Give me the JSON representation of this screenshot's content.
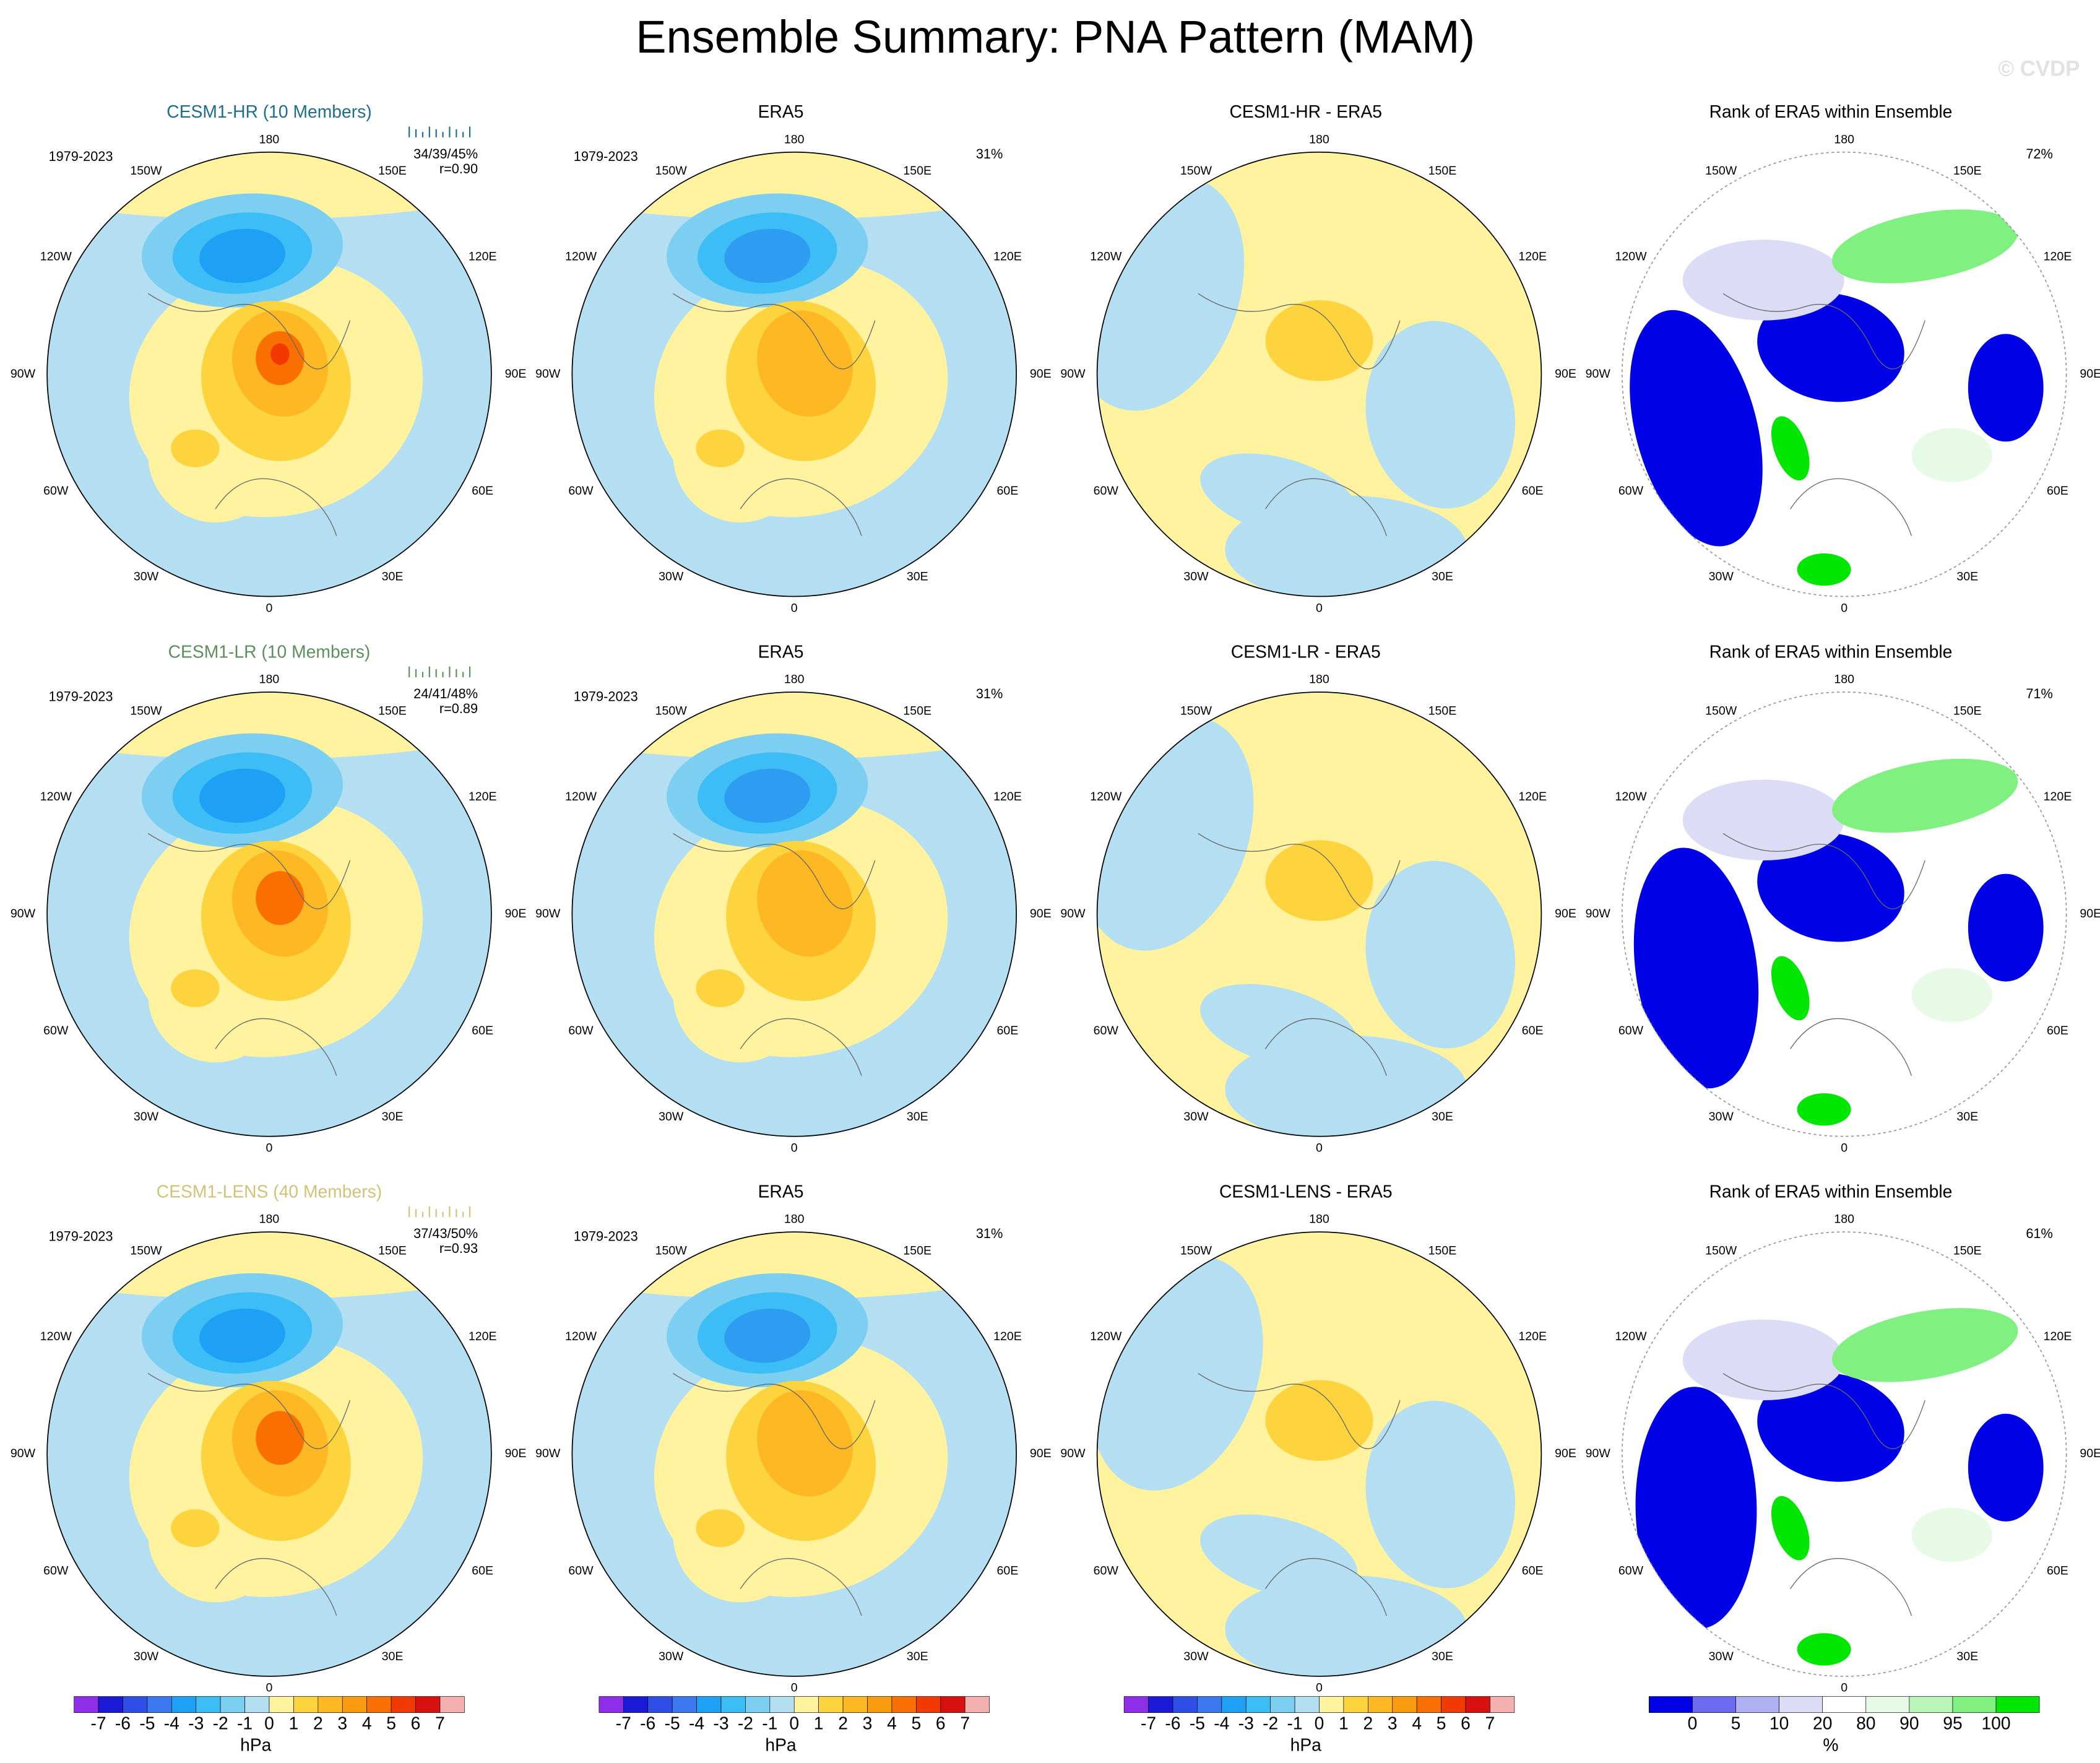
{
  "title": "Ensemble Summary: PNA Pattern (MAM)",
  "watermark": "© CVDP",
  "longitude_labels": [
    "180",
    "150E",
    "120E",
    "90E",
    "60E",
    "30E",
    "0",
    "30W",
    "60W",
    "90W",
    "120W",
    "150W"
  ],
  "rows": [
    {
      "panels": [
        {
          "title": "CESM1-HR (10 Members)",
          "title_color": "#1f6f8b",
          "period": "1979-2023",
          "stats": [
            "34/39/45%",
            "r=0.90"
          ]
        },
        {
          "title": "ERA5",
          "period": "1979-2023",
          "stats": [
            "31%"
          ]
        },
        {
          "title": "CESM1-HR - ERA5"
        },
        {
          "title": "Rank of ERA5 within Ensemble",
          "stats": [
            "72%"
          ]
        }
      ]
    },
    {
      "panels": [
        {
          "title": "CESM1-LR (10 Members)",
          "title_color": "#5e8f5e",
          "period": "1979-2023",
          "stats": [
            "24/41/48%",
            "r=0.89"
          ]
        },
        {
          "title": "ERA5",
          "period": "1979-2023",
          "stats": [
            "31%"
          ]
        },
        {
          "title": "CESM1-LR - ERA5"
        },
        {
          "title": "Rank of ERA5 within Ensemble",
          "stats": [
            "71%"
          ]
        }
      ]
    },
    {
      "panels": [
        {
          "title": "CESM1-LENS (40 Members)",
          "title_color": "#d2c27a",
          "period": "1979-2023",
          "stats": [
            "37/43/50%",
            "r=0.93"
          ]
        },
        {
          "title": "ERA5",
          "period": "1979-2023",
          "stats": [
            "31%"
          ]
        },
        {
          "title": "CESM1-LENS - ERA5"
        },
        {
          "title": "Rank of ERA5 within Ensemble",
          "stats": [
            "61%"
          ]
        }
      ]
    }
  ],
  "colorbars": [
    {
      "ticks": [
        -7,
        -6,
        -5,
        -4,
        -3,
        -2,
        -1,
        0,
        1,
        2,
        3,
        4,
        5,
        6,
        7
      ],
      "unit": "hPa",
      "colors": [
        "#8f2ee8",
        "#1a1ad6",
        "#2e4ee6",
        "#3b78ef",
        "#1ea0f5",
        "#3dbdf5",
        "#7dcff2",
        "#b4dff2",
        "#fff3a0",
        "#fed43e",
        "#fdb824",
        "#fc9a10",
        "#fa7000",
        "#f23a00",
        "#d81010",
        "#f5b0b0"
      ]
    },
    {
      "ticks": [
        -7,
        -6,
        -5,
        -4,
        -3,
        -2,
        -1,
        0,
        1,
        2,
        3,
        4,
        5,
        6,
        7
      ],
      "unit": "hPa",
      "colors": [
        "#8f2ee8",
        "#1a1ad6",
        "#2e4ee6",
        "#3b78ef",
        "#1ea0f5",
        "#3dbdf5",
        "#7dcff2",
        "#b4dff2",
        "#fff3a0",
        "#fed43e",
        "#fdb824",
        "#fc9a10",
        "#fa7000",
        "#f23a00",
        "#d81010",
        "#f5b0b0"
      ]
    },
    {
      "ticks": [
        -7,
        -6,
        -5,
        -4,
        -3,
        -2,
        -1,
        0,
        1,
        2,
        3,
        4,
        5,
        6,
        7
      ],
      "unit": "hPa",
      "colors": [
        "#8f2ee8",
        "#1a1ad6",
        "#2e4ee6",
        "#3b78ef",
        "#1ea0f5",
        "#3dbdf5",
        "#7dcff2",
        "#b4dff2",
        "#fff3a0",
        "#fed43e",
        "#fdb824",
        "#fc9a10",
        "#fa7000",
        "#f23a00",
        "#d81010",
        "#f5b0b0"
      ]
    },
    {
      "ticks": [
        0,
        5,
        10,
        20,
        80,
        90,
        95,
        100
      ],
      "unit": "%",
      "colors": [
        "#0000e6",
        "#6b6bf0",
        "#b0b0f4",
        "#dcdcf6",
        "#ffffff",
        "#e6fae6",
        "#b9f5b9",
        "#80f080",
        "#00e600"
      ]
    }
  ]
}
